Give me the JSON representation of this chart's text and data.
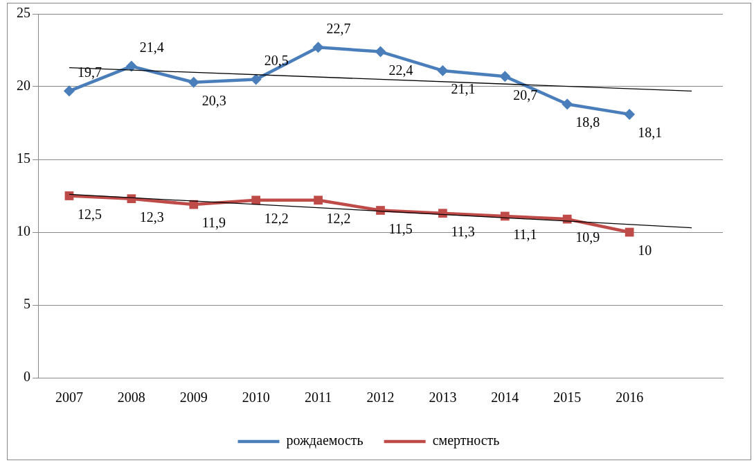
{
  "chart_data": {
    "type": "line",
    "categories": [
      "2007",
      "2008",
      "2009",
      "2010",
      "2011",
      "2012",
      "2013",
      "2014",
      "2015",
      "2016",
      null
    ],
    "series": [
      {
        "name": "рождаемость",
        "color": "#4a7ebb",
        "marker": "diamond",
        "values": [
          19.7,
          21.4,
          20.3,
          20.5,
          22.7,
          22.4,
          21.1,
          20.7,
          18.8,
          18.1,
          null
        ],
        "value_labels": [
          "19,7",
          "21,4",
          "20,3",
          "20,5",
          "22,7",
          "22,4",
          "21,1",
          "20,7",
          "18,8",
          "18,1",
          null
        ]
      },
      {
        "name": "смертность",
        "color": "#be4b48",
        "marker": "square",
        "values": [
          12.5,
          12.3,
          11.9,
          12.2,
          12.2,
          11.5,
          11.3,
          11.1,
          10.9,
          10,
          null
        ],
        "value_labels": [
          "12,5",
          "12,3",
          "11,9",
          "12,2",
          "12,2",
          "11,5",
          "11,3",
          "11,1",
          "10,9",
          "10",
          null
        ]
      },
      {
        "type": "line",
        "color": "#000000",
        "marker": "none",
        "values": [
          21.3,
          null,
          null,
          null,
          null,
          null,
          null,
          null,
          null,
          null,
          19.7
        ]
      },
      {
        "type": "line",
        "color": "#000000",
        "marker": "none",
        "values": [
          12.6,
          null,
          null,
          null,
          null,
          null,
          null,
          null,
          null,
          null,
          10.3
        ]
      }
    ],
    "ylim": [
      0,
      25
    ],
    "yticks": [
      0,
      5,
      10,
      15,
      20,
      25
    ],
    "grid": "y",
    "legend": "bottom"
  }
}
